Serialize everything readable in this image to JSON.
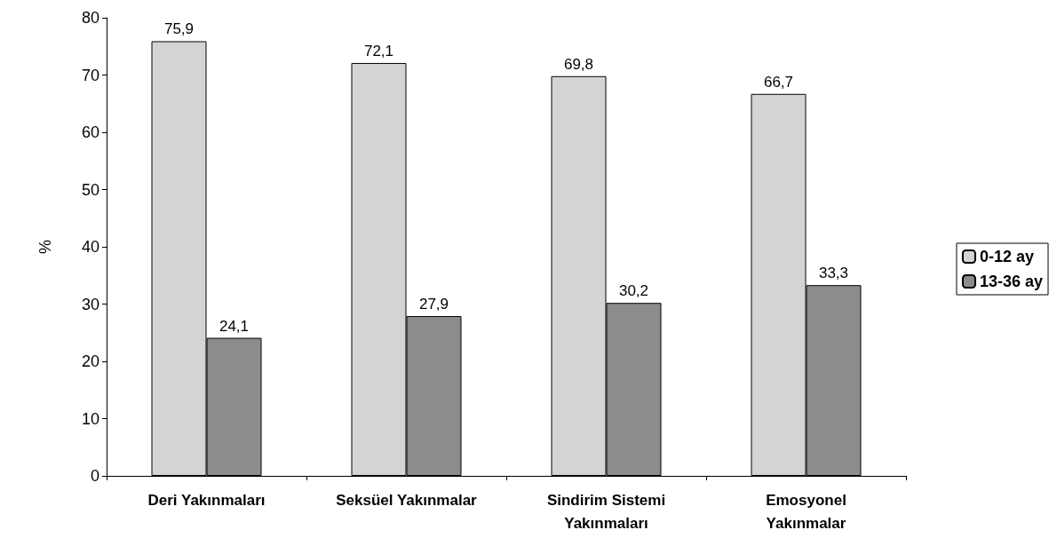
{
  "chart_data": {
    "type": "bar",
    "ylabel": "%",
    "categories": [
      "Deri Yakınmaları",
      "Seksüel Yakınmalar",
      "Sindirim Sistemi\nYakınmaları",
      "Emosyonel\nYakınmalar"
    ],
    "series": [
      {
        "name": "0-12 ay",
        "color": "#d4d4d4",
        "values": [
          75.9,
          72.1,
          69.8,
          66.7
        ],
        "value_labels": [
          "75,9",
          "72,1",
          "69,8",
          "66,7"
        ]
      },
      {
        "name": "13-36 ay",
        "color": "#8c8c8c",
        "values": [
          24.1,
          27.9,
          30.2,
          33.3
        ],
        "value_labels": [
          "24,1",
          "27,9",
          "30,2",
          "33,3"
        ]
      }
    ],
    "ylim": [
      0,
      80
    ],
    "yticks": [
      0,
      10,
      20,
      30,
      40,
      50,
      60,
      70,
      80
    ],
    "grid": false,
    "legend": "right"
  }
}
